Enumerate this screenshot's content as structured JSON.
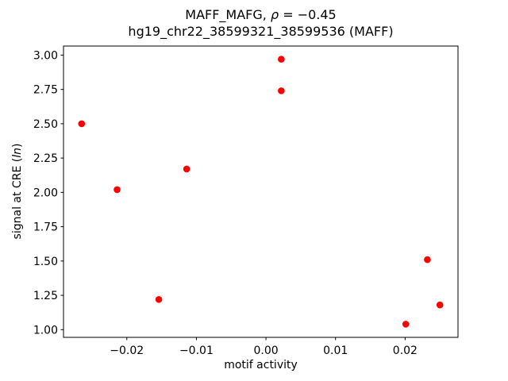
{
  "title": {
    "line1_prefix": "MAFF_MAFG, ",
    "line1_rho": "ρ",
    "line1_suffix": " = −0.45",
    "line2": "hg19_chr22_38599321_38599536 (MAFF)"
  },
  "axes": {
    "xlabel": "motif activity",
    "ylabel_prefix": "signal at CRE (",
    "ylabel_italic": "ln",
    "ylabel_suffix": ")"
  },
  "chart_data": {
    "type": "scatter",
    "title": "MAFF_MAFG, ρ = −0.45",
    "subtitle": "hg19_chr22_38599321_38599536 (MAFF)",
    "xlabel": "motif activity",
    "ylabel": "signal at CRE (ln)",
    "marker_color": "#ff0000",
    "marker_diameter_px": 8.6,
    "grid": false,
    "legend": null,
    "xlim": [
      -0.0291,
      0.0276
    ],
    "ylim": [
      0.944,
      3.066
    ],
    "xticks": [
      -0.02,
      -0.01,
      0,
      0.01,
      0.02
    ],
    "xtick_labels": [
      "−0.02",
      "−0.01",
      "0.00",
      "0.01",
      "0.02"
    ],
    "yticks": [
      1.0,
      1.25,
      1.5,
      1.75,
      2.0,
      2.25,
      2.5,
      2.75,
      3.0
    ],
    "ytick_labels": [
      "1.00",
      "1.25",
      "1.50",
      "1.75",
      "2.00",
      "2.25",
      "2.50",
      "2.75",
      "3.00"
    ],
    "points": [
      {
        "x": -0.0265,
        "y": 2.5
      },
      {
        "x": -0.0214,
        "y": 2.02
      },
      {
        "x": -0.0154,
        "y": 1.22
      },
      {
        "x": -0.0114,
        "y": 2.17
      },
      {
        "x": 0.0022,
        "y": 2.97
      },
      {
        "x": 0.0022,
        "y": 2.74
      },
      {
        "x": 0.0201,
        "y": 1.04
      },
      {
        "x": 0.0232,
        "y": 1.51
      },
      {
        "x": 0.025,
        "y": 1.18
      }
    ]
  }
}
